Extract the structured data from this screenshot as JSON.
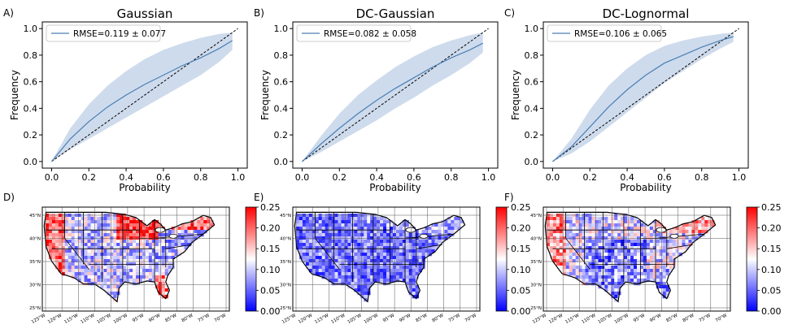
{
  "chart_data": [
    {
      "type": "line",
      "panel": "A)",
      "title": "Gaussian",
      "xlabel": "Probability",
      "ylabel": "Frequency",
      "xlim": [
        -0.05,
        1.05
      ],
      "ylim": [
        -0.05,
        1.05
      ],
      "xticks": [
        "0.0",
        "0.2",
        "0.4",
        "0.6",
        "0.8",
        "1.0"
      ],
      "yticks": [
        "0.0",
        "0.2",
        "0.4",
        "0.6",
        "0.8",
        "1.0"
      ],
      "legend": "RMSE=0.119 ± 0.077",
      "reference_line": "y = x (black dashed)",
      "series": [
        {
          "name": "mean",
          "x": [
            0.0,
            0.1,
            0.2,
            0.3,
            0.4,
            0.5,
            0.6,
            0.7,
            0.8,
            0.9,
            0.97
          ],
          "y": [
            0.0,
            0.17,
            0.3,
            0.41,
            0.5,
            0.58,
            0.65,
            0.72,
            0.78,
            0.85,
            0.91
          ]
        },
        {
          "name": "upper",
          "x": [
            0.0,
            0.1,
            0.2,
            0.3,
            0.4,
            0.5,
            0.6,
            0.7,
            0.8,
            0.9,
            0.97
          ],
          "y": [
            0.0,
            0.25,
            0.43,
            0.57,
            0.68,
            0.77,
            0.84,
            0.89,
            0.93,
            0.96,
            0.97
          ]
        },
        {
          "name": "lower",
          "x": [
            0.0,
            0.1,
            0.2,
            0.3,
            0.4,
            0.5,
            0.6,
            0.7,
            0.8,
            0.9,
            0.97
          ],
          "y": [
            0.0,
            0.09,
            0.17,
            0.25,
            0.33,
            0.41,
            0.49,
            0.57,
            0.65,
            0.75,
            0.84
          ]
        }
      ]
    },
    {
      "type": "line",
      "panel": "B)",
      "title": "DC-Gaussian",
      "xlabel": "Probability",
      "ylabel": "Frequency",
      "xlim": [
        -0.05,
        1.05
      ],
      "ylim": [
        -0.05,
        1.05
      ],
      "xticks": [
        "0.0",
        "0.2",
        "0.4",
        "0.6",
        "0.8",
        "1.0"
      ],
      "yticks": [
        "0.0",
        "0.2",
        "0.4",
        "0.6",
        "0.8",
        "1.0"
      ],
      "legend": "RMSE=0.082 ± 0.058",
      "reference_line": "y = x (black dashed)",
      "series": [
        {
          "name": "mean",
          "x": [
            0.0,
            0.1,
            0.2,
            0.3,
            0.4,
            0.5,
            0.6,
            0.7,
            0.8,
            0.9,
            0.97
          ],
          "y": [
            0.0,
            0.13,
            0.25,
            0.36,
            0.46,
            0.55,
            0.63,
            0.71,
            0.78,
            0.84,
            0.89
          ]
        },
        {
          "name": "upper",
          "x": [
            0.0,
            0.1,
            0.2,
            0.3,
            0.4,
            0.5,
            0.6,
            0.7,
            0.8,
            0.9,
            0.97
          ],
          "y": [
            0.0,
            0.19,
            0.36,
            0.5,
            0.61,
            0.71,
            0.79,
            0.86,
            0.91,
            0.95,
            0.97
          ]
        },
        {
          "name": "lower",
          "x": [
            0.0,
            0.1,
            0.2,
            0.3,
            0.4,
            0.5,
            0.6,
            0.7,
            0.8,
            0.9,
            0.97
          ],
          "y": [
            0.0,
            0.07,
            0.15,
            0.23,
            0.31,
            0.4,
            0.48,
            0.57,
            0.65,
            0.74,
            0.82
          ]
        }
      ]
    },
    {
      "type": "line",
      "panel": "C)",
      "title": "DC-Lognormal",
      "xlabel": "Probability",
      "ylabel": "Frequency",
      "xlim": [
        -0.05,
        1.05
      ],
      "ylim": [
        -0.05,
        1.05
      ],
      "xticks": [
        "0.0",
        "0.2",
        "0.4",
        "0.6",
        "0.8",
        "1.0"
      ],
      "yticks": [
        "0.0",
        "0.2",
        "0.4",
        "0.6",
        "0.8",
        "1.0"
      ],
      "legend": "RMSE=0.106 ± 0.065",
      "reference_line": "y = x (black dashed)",
      "series": [
        {
          "name": "mean",
          "x": [
            0.0,
            0.1,
            0.2,
            0.3,
            0.4,
            0.5,
            0.6,
            0.7,
            0.8,
            0.9,
            0.97
          ],
          "y": [
            0.0,
            0.11,
            0.26,
            0.41,
            0.54,
            0.65,
            0.74,
            0.8,
            0.86,
            0.91,
            0.94
          ]
        },
        {
          "name": "upper",
          "x": [
            0.0,
            0.1,
            0.2,
            0.3,
            0.4,
            0.5,
            0.6,
            0.7,
            0.8,
            0.9,
            0.97
          ],
          "y": [
            0.0,
            0.17,
            0.39,
            0.57,
            0.7,
            0.8,
            0.87,
            0.91,
            0.94,
            0.96,
            0.97
          ]
        },
        {
          "name": "lower",
          "x": [
            0.0,
            0.1,
            0.2,
            0.3,
            0.4,
            0.5,
            0.6,
            0.7,
            0.8,
            0.9,
            0.97
          ],
          "y": [
            0.0,
            0.06,
            0.15,
            0.26,
            0.37,
            0.48,
            0.59,
            0.68,
            0.77,
            0.85,
            0.9
          ]
        }
      ]
    },
    {
      "type": "heatmap",
      "panel": "D)",
      "description_source": "map of contiguous US",
      "lon_ticks": [
        "125°W",
        "120°W",
        "115°W",
        "110°W",
        "105°W",
        "100°W",
        "95°W",
        "90°W",
        "85°W",
        "80°W",
        "75°W",
        "70°W"
      ],
      "lat_ticks": [
        "25°N",
        "30°N",
        "35°N",
        "40°N",
        "45°N"
      ],
      "colorbar": {
        "min": 0.0,
        "max": 0.25,
        "ticks": [
          "0.00",
          "0.05",
          "0.10",
          "0.15",
          "0.20",
          "0.25"
        ],
        "colormap": "bwr"
      },
      "mean_value": 0.14
    },
    {
      "type": "heatmap",
      "panel": "E)",
      "description_source": "map of contiguous US",
      "lon_ticks": [
        "125°W",
        "120°W",
        "115°W",
        "110°W",
        "105°W",
        "100°W",
        "95°W",
        "90°W",
        "85°W",
        "80°W",
        "75°W",
        "70°W"
      ],
      "lat_ticks": [
        "25°N",
        "30°N",
        "35°N",
        "40°N",
        "45°N"
      ],
      "colorbar": {
        "min": 0.0,
        "max": 0.25,
        "ticks": [
          "0.00",
          "0.05",
          "0.10",
          "0.15",
          "0.20",
          "0.25"
        ],
        "colormap": "bwr"
      },
      "mean_value": 0.07
    },
    {
      "type": "heatmap",
      "panel": "F)",
      "description_source": "map of contiguous US",
      "lon_ticks": [
        "125°W",
        "120°W",
        "115°W",
        "110°W",
        "105°W",
        "100°W",
        "95°W",
        "90°W",
        "85°W",
        "80°W",
        "75°W",
        "70°W"
      ],
      "lat_ticks": [
        "25°N",
        "30°N",
        "35°N",
        "40°N",
        "45°N"
      ],
      "colorbar": {
        "min": 0.0,
        "max": 0.25,
        "ticks": [
          "0.00",
          "0.05",
          "0.10",
          "0.15",
          "0.20",
          "0.25"
        ],
        "colormap": "bwr"
      },
      "mean_value": 0.11
    }
  ],
  "colors": {
    "curve": "#4a7fb5",
    "band": "#c9d7ea",
    "reference": "#000000",
    "low": "#0000ff",
    "mid": "#ffffff",
    "high": "#ff0000",
    "land_outline": "#000000"
  }
}
